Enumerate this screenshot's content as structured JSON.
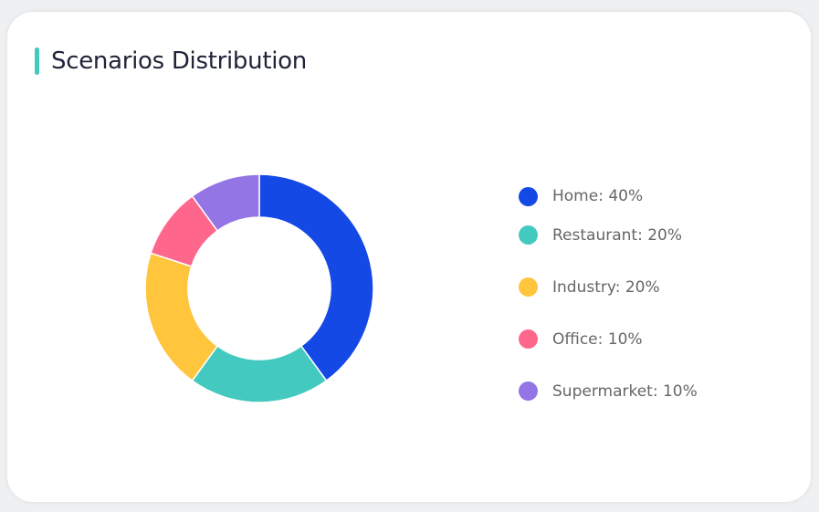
{
  "chart_data": {
    "type": "pie",
    "variant": "donut",
    "title": "Scenarios Distribution",
    "categories": [
      "Home",
      "Restaurant",
      "Industry",
      "Office",
      "Supermarket"
    ],
    "values": [
      40,
      20,
      20,
      10,
      10
    ],
    "unit": "%",
    "colors": [
      "#1549e6",
      "#43c9bf",
      "#ffc53d",
      "#ff668c",
      "#9475e6"
    ],
    "legend": {
      "placement": "right",
      "entries": [
        "Home: 40%",
        "Restaurant: 20%",
        "Industry: 20%",
        "Office: 10%",
        "Supermarket: 10%"
      ]
    }
  },
  "accent_color": "#43c9bf"
}
